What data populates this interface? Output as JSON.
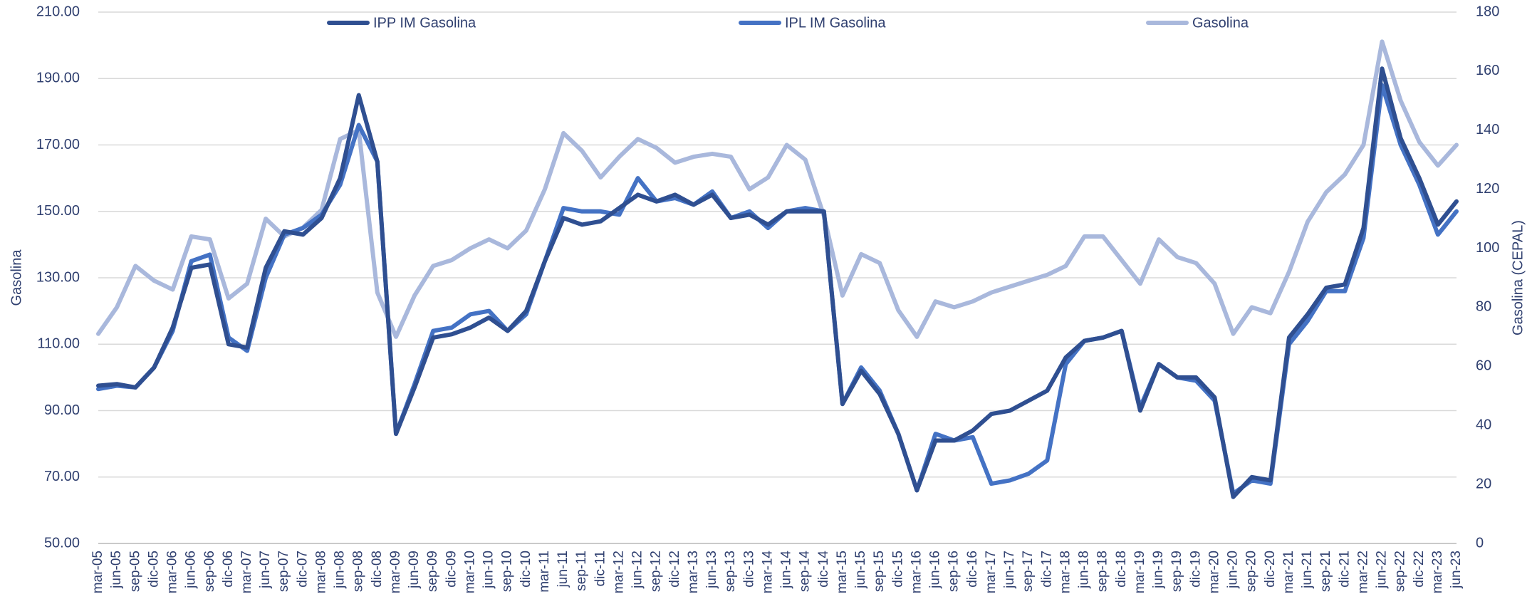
{
  "chart_data": {
    "type": "line",
    "y_label": "Gasolina",
    "y2_label": "Gasolina (CEPAL)",
    "categories": [
      "mar-05",
      "jun-05",
      "sep-05",
      "dic-05",
      "mar-06",
      "jun-06",
      "sep-06",
      "dic-06",
      "mar-07",
      "jun-07",
      "sep-07",
      "dic-07",
      "mar-08",
      "jun-08",
      "sep-08",
      "dic-08",
      "mar-09",
      "jun-09",
      "sep-09",
      "dic-09",
      "mar-10",
      "jun-10",
      "sep-10",
      "dic-10",
      "mar-11",
      "jun-11",
      "sep-11",
      "dic-11",
      "mar-12",
      "jun-12",
      "sep-12",
      "dic-12",
      "mar-13",
      "jun-13",
      "sep-13",
      "dic-13",
      "mar-14",
      "jun-14",
      "sep-14",
      "dic-14",
      "mar-15",
      "jun-15",
      "sep-15",
      "dic-15",
      "mar-16",
      "jun-16",
      "sep-16",
      "dic-16",
      "mar-17",
      "jun-17",
      "sep-17",
      "dic-17",
      "mar-18",
      "jun-18",
      "sep-18",
      "dic-18",
      "mar-19",
      "jun-19",
      "sep-19",
      "dic-19",
      "mar-20",
      "jun-20",
      "sep-20",
      "dic-20",
      "mar-21",
      "jun-21",
      "sep-21",
      "dic-21",
      "mar-22",
      "jun-22",
      "sep-22",
      "dic-22",
      "mar-23",
      "jun-23"
    ],
    "series": [
      {
        "name": "IPP IM Gasolina",
        "color": "#2f4f91",
        "axis": "y",
        "values": [
          97.5,
          98,
          97,
          103,
          115,
          133,
          134,
          110,
          109,
          133,
          144,
          143,
          148,
          160,
          185,
          165,
          83,
          97,
          112,
          113,
          115,
          118,
          114,
          120,
          135,
          148,
          146,
          147,
          151,
          155,
          153,
          155,
          152,
          155,
          148,
          149,
          146,
          150,
          150,
          150,
          92,
          102,
          95,
          83,
          66,
          81,
          81,
          84,
          89,
          90,
          93,
          96,
          106,
          111,
          112,
          114,
          90,
          104,
          100,
          100,
          94,
          64,
          70,
          69,
          112,
          119,
          127,
          128,
          145,
          193,
          172,
          160,
          146,
          153
        ]
      },
      {
        "name": "IPL IM Gasolina",
        "color": "#4472c4",
        "axis": "y",
        "values": [
          96.5,
          97.5,
          97,
          103,
          114,
          135,
          137,
          112,
          108,
          130,
          143,
          145,
          149,
          158,
          176,
          165,
          83,
          98,
          114,
          115,
          119,
          120,
          114,
          119,
          135,
          151,
          150,
          150,
          149,
          160,
          153,
          154,
          152,
          156,
          148,
          150,
          145,
          150,
          151,
          150,
          92,
          103,
          96,
          83,
          66,
          83,
          81,
          82,
          68,
          69,
          71,
          75,
          104,
          111,
          112,
          114,
          91,
          104,
          100,
          99,
          93,
          65,
          69,
          68,
          110,
          117,
          126,
          126,
          142,
          188,
          170,
          158,
          143,
          150
        ]
      },
      {
        "name": "Gasolina",
        "color": "#a9b8dc",
        "axis": "y2",
        "values": [
          71,
          80,
          94,
          89,
          86,
          104,
          103,
          83,
          88,
          110,
          104,
          107,
          113,
          137,
          140,
          85,
          70,
          84,
          94,
          96,
          100,
          103,
          100,
          106,
          120,
          139,
          133,
          124,
          131,
          137,
          134,
          129,
          131,
          132,
          131,
          120,
          124,
          135,
          130,
          111,
          84,
          98,
          95,
          79,
          70,
          82,
          80,
          82,
          85,
          87,
          89,
          91,
          94,
          104,
          104,
          96,
          88,
          103,
          97,
          95,
          88,
          71,
          80,
          78,
          92,
          109,
          119,
          125,
          135,
          170,
          150,
          136,
          128,
          135
        ]
      }
    ],
    "ylim": [
      50,
      210
    ],
    "yticks": [
      {
        "value": 50,
        "label": "50.00"
      },
      {
        "value": 70,
        "label": "70.00"
      },
      {
        "value": 90,
        "label": "90.00"
      },
      {
        "value": 110,
        "label": "110.00"
      },
      {
        "value": 130,
        "label": "130.00"
      },
      {
        "value": 150,
        "label": "150.00"
      },
      {
        "value": 170,
        "label": "170.00"
      },
      {
        "value": 190,
        "label": "190.00"
      },
      {
        "value": 210,
        "label": "210.00"
      }
    ],
    "y2lim": [
      0,
      180
    ],
    "y2ticks": [
      0,
      20,
      40,
      60,
      80,
      100,
      120,
      140,
      160,
      180
    ],
    "grid": true,
    "legend": "top"
  }
}
